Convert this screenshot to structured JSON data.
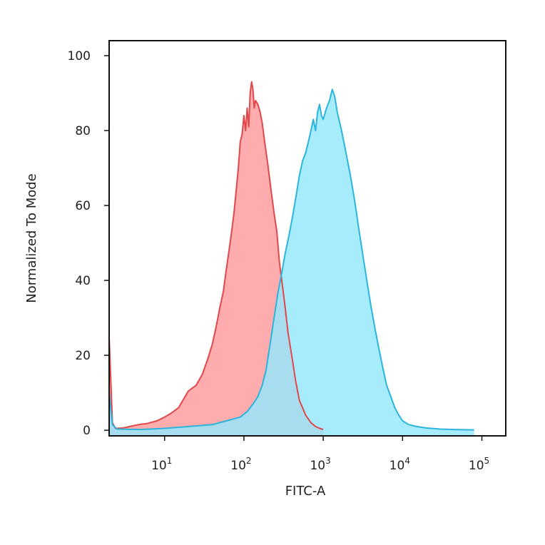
{
  "chart_data": {
    "type": "area",
    "title": "",
    "xlabel": "FITC-A",
    "ylabel": "Normalized To Mode",
    "x_scale": "log",
    "xlim": [
      2,
      200000
    ],
    "ylim": [
      -1.5,
      104
    ],
    "grid": false,
    "legend": "none",
    "x_ticks": [
      {
        "value": 10,
        "base": "10",
        "exp": "1"
      },
      {
        "value": 100,
        "base": "10",
        "exp": "2"
      },
      {
        "value": 1000,
        "base": "10",
        "exp": "3"
      },
      {
        "value": 10000,
        "base": "10",
        "exp": "4"
      },
      {
        "value": 100000,
        "base": "10",
        "exp": "5"
      }
    ],
    "y_ticks": [
      {
        "value": 0,
        "label": "0"
      },
      {
        "value": 20,
        "label": "20"
      },
      {
        "value": 40,
        "label": "40"
      },
      {
        "value": 60,
        "label": "60"
      },
      {
        "value": 80,
        "label": "80"
      },
      {
        "value": 100,
        "label": "100"
      }
    ],
    "series": [
      {
        "color": "#e2474b",
        "fill": "#ff9a9e",
        "points": [
          [
            2,
            25
          ],
          [
            2.2,
            2
          ],
          [
            2.4,
            0.5
          ],
          [
            3,
            0.6
          ],
          [
            4,
            1.2
          ],
          [
            5,
            1.6
          ],
          [
            6,
            1.8
          ],
          [
            8,
            2.5
          ],
          [
            10,
            3.5
          ],
          [
            12,
            4.5
          ],
          [
            15,
            6
          ],
          [
            17,
            8
          ],
          [
            20,
            10.5
          ],
          [
            25,
            12
          ],
          [
            30,
            15
          ],
          [
            35,
            19
          ],
          [
            40,
            23
          ],
          [
            45,
            28
          ],
          [
            50,
            33
          ],
          [
            55,
            37
          ],
          [
            60,
            43
          ],
          [
            65,
            48
          ],
          [
            70,
            53
          ],
          [
            75,
            58
          ],
          [
            80,
            64
          ],
          [
            85,
            70
          ],
          [
            90,
            77
          ],
          [
            95,
            79
          ],
          [
            100,
            84
          ],
          [
            105,
            80
          ],
          [
            110,
            86
          ],
          [
            115,
            81
          ],
          [
            120,
            90
          ],
          [
            125,
            93
          ],
          [
            130,
            91
          ],
          [
            135,
            86
          ],
          [
            140,
            88
          ],
          [
            150,
            87
          ],
          [
            160,
            85
          ],
          [
            170,
            82
          ],
          [
            180,
            78
          ],
          [
            200,
            71
          ],
          [
            220,
            64
          ],
          [
            240,
            58
          ],
          [
            260,
            53
          ],
          [
            280,
            45
          ],
          [
            300,
            40
          ],
          [
            330,
            33
          ],
          [
            360,
            26
          ],
          [
            400,
            20
          ],
          [
            450,
            13
          ],
          [
            500,
            8
          ],
          [
            600,
            4
          ],
          [
            700,
            2
          ],
          [
            800,
            1
          ],
          [
            900,
            0.5
          ],
          [
            1000,
            0.2
          ]
        ]
      },
      {
        "color": "#2bb5dd",
        "fill": "#94e8fb",
        "points": [
          [
            2,
            10
          ],
          [
            2.2,
            1.5
          ],
          [
            2.5,
            0.3
          ],
          [
            5,
            0.2
          ],
          [
            10,
            0.5
          ],
          [
            20,
            1
          ],
          [
            40,
            1.5
          ],
          [
            60,
            2.5
          ],
          [
            90,
            3.5
          ],
          [
            110,
            5
          ],
          [
            130,
            7
          ],
          [
            150,
            9
          ],
          [
            170,
            12
          ],
          [
            190,
            16
          ],
          [
            210,
            22
          ],
          [
            240,
            30
          ],
          [
            270,
            37
          ],
          [
            300,
            42
          ],
          [
            330,
            47
          ],
          [
            370,
            52
          ],
          [
            410,
            57
          ],
          [
            450,
            62
          ],
          [
            500,
            68
          ],
          [
            550,
            72
          ],
          [
            600,
            74
          ],
          [
            650,
            77
          ],
          [
            700,
            80
          ],
          [
            750,
            83
          ],
          [
            800,
            80
          ],
          [
            850,
            85
          ],
          [
            900,
            87
          ],
          [
            950,
            84
          ],
          [
            1000,
            83
          ],
          [
            1100,
            86
          ],
          [
            1200,
            88
          ],
          [
            1300,
            91
          ],
          [
            1400,
            89
          ],
          [
            1500,
            85
          ],
          [
            1700,
            80
          ],
          [
            1900,
            75
          ],
          [
            2200,
            68
          ],
          [
            2500,
            61
          ],
          [
            2800,
            54
          ],
          [
            3200,
            46
          ],
          [
            3600,
            39
          ],
          [
            4000,
            33
          ],
          [
            4500,
            27
          ],
          [
            5000,
            22
          ],
          [
            5600,
            17
          ],
          [
            6300,
            12
          ],
          [
            7100,
            9
          ],
          [
            8000,
            6
          ],
          [
            9000,
            4
          ],
          [
            10000,
            2.5
          ],
          [
            12000,
            1.5
          ],
          [
            15000,
            1
          ],
          [
            20000,
            0.6
          ],
          [
            30000,
            0.3
          ],
          [
            50000,
            0.15
          ],
          [
            80000,
            0.1
          ]
        ]
      }
    ]
  }
}
